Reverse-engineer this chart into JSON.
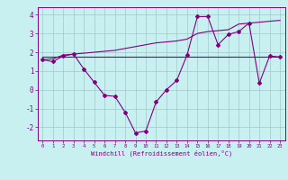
{
  "xlabel": "Windchill (Refroidissement éolien,°C)",
  "background_color": "#c8f0f0",
  "line_color": "#800080",
  "hours": [
    0,
    1,
    2,
    3,
    4,
    5,
    6,
    7,
    8,
    9,
    10,
    11,
    12,
    13,
    14,
    15,
    16,
    17,
    18,
    19,
    20,
    21,
    22,
    23
  ],
  "line1": [
    1.6,
    1.5,
    1.8,
    1.9,
    1.1,
    0.4,
    -0.3,
    -0.35,
    -1.2,
    -2.3,
    -2.2,
    -0.65,
    0.0,
    0.5,
    1.85,
    3.9,
    3.9,
    2.4,
    2.95,
    3.1,
    3.55,
    0.35,
    1.8,
    1.75
  ],
  "line2_x": [
    0,
    23
  ],
  "line2_y": [
    1.75,
    1.75
  ],
  "line3": [
    1.6,
    1.65,
    1.85,
    1.9,
    1.95,
    2.0,
    2.05,
    2.1,
    2.2,
    2.3,
    2.4,
    2.5,
    2.55,
    2.6,
    2.7,
    3.0,
    3.1,
    3.15,
    3.2,
    3.5,
    3.55,
    3.6,
    3.65,
    3.7
  ],
  "ylim": [
    -2.7,
    4.4
  ],
  "xlim": [
    -0.5,
    23.5
  ],
  "yticks": [
    -2,
    -1,
    0,
    1,
    2,
    3,
    4
  ],
  "xticks": [
    0,
    1,
    2,
    3,
    4,
    5,
    6,
    7,
    8,
    9,
    10,
    11,
    12,
    13,
    14,
    15,
    16,
    17,
    18,
    19,
    20,
    21,
    22,
    23
  ]
}
